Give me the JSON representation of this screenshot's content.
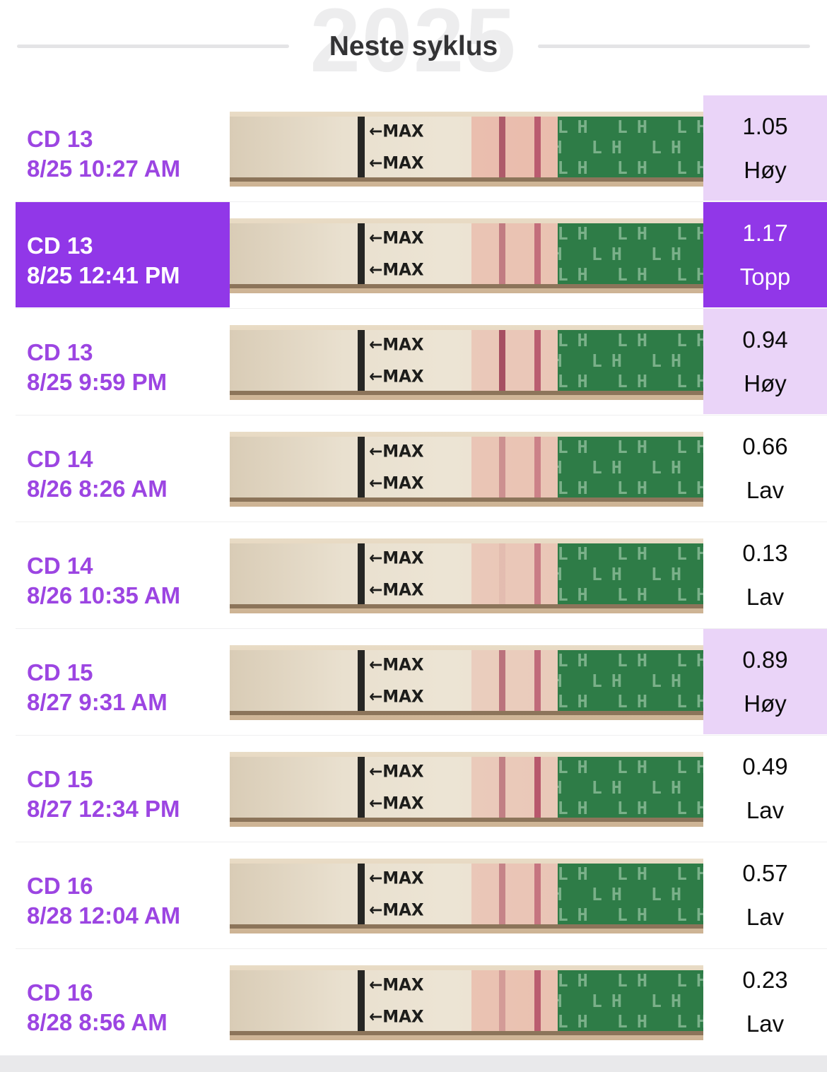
{
  "header": {
    "year_watermark": "2025",
    "title": "Neste syklus"
  },
  "strip_art": {
    "max_label": "←MAX",
    "lh_label": "LH"
  },
  "colors": {
    "label_purple": "#9c45e2",
    "peak_purple": "#9137e8",
    "high_badge": "#ead4f8",
    "strip_green": "#2e7c47",
    "test_line_red": "#9f4159",
    "control_line_red": "#b24a64"
  },
  "rows": [
    {
      "cd": "CD 13",
      "datetime": "8/25 10:27 AM",
      "value": "1.05",
      "status": "Høy",
      "level": "high",
      "highlighted": false,
      "strip": {
        "pink_intensity": 0.6,
        "test_line": 0.8,
        "control_line": 0.85
      }
    },
    {
      "cd": "CD 13",
      "datetime": "8/25 12:41 PM",
      "value": "1.17",
      "status": "Topp",
      "level": "peak",
      "highlighted": true,
      "strip": {
        "pink_intensity": 0.5,
        "test_line": 0.55,
        "control_line": 0.7
      }
    },
    {
      "cd": "CD 13",
      "datetime": "8/25 9:59 PM",
      "value": "0.94",
      "status": "Høy",
      "level": "high",
      "highlighted": false,
      "strip": {
        "pink_intensity": 0.42,
        "test_line": 0.9,
        "control_line": 0.85
      }
    },
    {
      "cd": "CD 14",
      "datetime": "8/26 8:26 AM",
      "value": "0.66",
      "status": "Lav",
      "level": "low",
      "highlighted": false,
      "strip": {
        "pink_intensity": 0.48,
        "test_line": 0.4,
        "control_line": 0.55
      }
    },
    {
      "cd": "CD 14",
      "datetime": "8/26 10:35 AM",
      "value": "0.13",
      "status": "Lav",
      "level": "low",
      "highlighted": false,
      "strip": {
        "pink_intensity": 0.42,
        "test_line": 0.08,
        "control_line": 0.6
      }
    },
    {
      "cd": "CD 15",
      "datetime": "8/27 9:31 AM",
      "value": "0.89",
      "status": "Høy",
      "level": "high",
      "highlighted": false,
      "strip": {
        "pink_intensity": 0.34,
        "test_line": 0.65,
        "control_line": 0.75
      }
    },
    {
      "cd": "CD 15",
      "datetime": "8/27 12:34 PM",
      "value": "0.49",
      "status": "Lav",
      "level": "low",
      "highlighted": false,
      "strip": {
        "pink_intensity": 0.4,
        "test_line": 0.55,
        "control_line": 0.9
      }
    },
    {
      "cd": "CD 16",
      "datetime": "8/28 12:04 AM",
      "value": "0.57",
      "status": "Lav",
      "level": "low",
      "highlighted": false,
      "strip": {
        "pink_intensity": 0.45,
        "test_line": 0.5,
        "control_line": 0.65
      }
    },
    {
      "cd": "CD 16",
      "datetime": "8/28 8:56 AM",
      "value": "0.23",
      "status": "Lav",
      "level": "low",
      "highlighted": false,
      "strip": {
        "pink_intensity": 0.52,
        "test_line": 0.3,
        "control_line": 0.85
      }
    }
  ]
}
